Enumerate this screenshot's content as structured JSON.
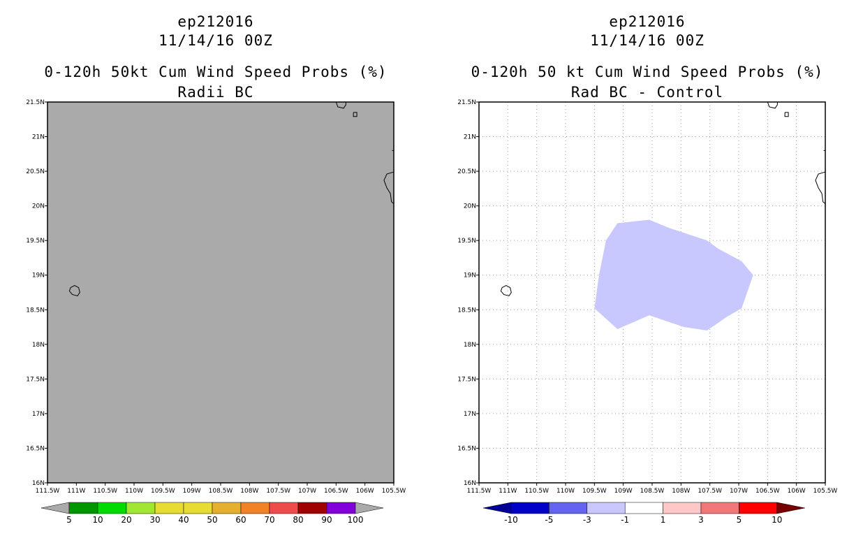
{
  "left_panel": {
    "storm_id": "ep212016",
    "datetime": "11/14/16 00Z",
    "product": "0-120h 50kt Cum Wind Speed Probs (%)",
    "subtitle": "Radii BC",
    "field_color": "#aaaaaa",
    "colorbar": {
      "colors": [
        "#009600",
        "#00dc00",
        "#a0e632",
        "#e6dc32",
        "#e6dc32",
        "#e6af2d",
        "#f08228",
        "#f04b4b",
        "#a00000",
        "#8200dc"
      ],
      "labels": [
        "5",
        "10",
        "20",
        "30",
        "40",
        "50",
        "60",
        "70",
        "80",
        "90",
        "100"
      ],
      "under_color": "#aaaaaa",
      "over_color": "#aaaaaa"
    }
  },
  "right_panel": {
    "storm_id": "ep212016",
    "datetime": "11/14/16 00Z",
    "product": "0-120h 50 kt Cum Wind Speed Probs (%)",
    "subtitle": "Rad BC - Control",
    "gridlines": true,
    "difference_region": {
      "color": "#c8c8ff",
      "range_label": "-3 to -1",
      "polygon_lonlat": [
        [
          -109.5,
          18.52
        ],
        [
          -109.42,
          19.0
        ],
        [
          -109.3,
          19.5
        ],
        [
          -109.1,
          19.75
        ],
        [
          -108.55,
          19.8
        ],
        [
          -108.2,
          19.68
        ],
        [
          -107.55,
          19.5
        ],
        [
          -107.35,
          19.38
        ],
        [
          -106.95,
          19.2
        ],
        [
          -106.75,
          19.0
        ],
        [
          -106.95,
          18.52
        ],
        [
          -107.2,
          18.4
        ],
        [
          -107.55,
          18.2
        ],
        [
          -107.95,
          18.25
        ],
        [
          -108.55,
          18.42
        ],
        [
          -109.1,
          18.22
        ],
        [
          -109.5,
          18.52
        ]
      ]
    },
    "colorbar": {
      "colors": [
        "#0000c8",
        "#6464f0",
        "#c8c8ff",
        "#ffffff",
        "#ffc8c8",
        "#f07878",
        "#ff0000"
      ],
      "labels": [
        "-10",
        "-5",
        "-3",
        "-1",
        "1",
        "3",
        "5",
        "10"
      ],
      "under_color": "#000096",
      "over_color": "#780000"
    }
  },
  "map": {
    "x_ticks": [
      "111.5W",
      "111W",
      "110.5W",
      "110W",
      "109.5W",
      "109W",
      "108.5W",
      "108W",
      "107.5W",
      "107W",
      "106.5W",
      "106W",
      "105.5W"
    ],
    "y_ticks": [
      "21.5N",
      "21N",
      "20.5N",
      "20N",
      "19.5N",
      "19N",
      "18.5N",
      "18N",
      "17.5N",
      "17N",
      "16.5N",
      "16N"
    ],
    "lon_range": [
      -111.5,
      -105.5
    ],
    "lat_range": [
      16,
      21.5
    ],
    "coastlines": [
      [
        [
          -111.1,
          18.82
        ],
        [
          -111.03,
          18.85
        ],
        [
          -110.96,
          18.82
        ],
        [
          -110.94,
          18.75
        ],
        [
          -110.98,
          18.7
        ],
        [
          -111.07,
          18.72
        ],
        [
          -111.12,
          18.77
        ],
        [
          -111.1,
          18.82
        ]
      ],
      [
        [
          -106.5,
          21.5
        ],
        [
          -106.47,
          21.43
        ],
        [
          -106.37,
          21.41
        ],
        [
          -106.33,
          21.46
        ],
        [
          -106.33,
          21.5
        ]
      ],
      [
        [
          -106.2,
          21.35
        ],
        [
          -106.14,
          21.35
        ],
        [
          -106.14,
          21.29
        ],
        [
          -106.2,
          21.29
        ],
        [
          -106.2,
          21.35
        ]
      ],
      [
        [
          -105.5,
          20.49
        ],
        [
          -105.62,
          20.46
        ],
        [
          -105.67,
          20.37
        ],
        [
          -105.62,
          20.26
        ],
        [
          -105.56,
          20.18
        ],
        [
          -105.54,
          20.06
        ],
        [
          -105.5,
          20.03
        ]
      ],
      [
        [
          -105.5,
          20.8
        ],
        [
          -105.53,
          20.8
        ]
      ]
    ]
  }
}
